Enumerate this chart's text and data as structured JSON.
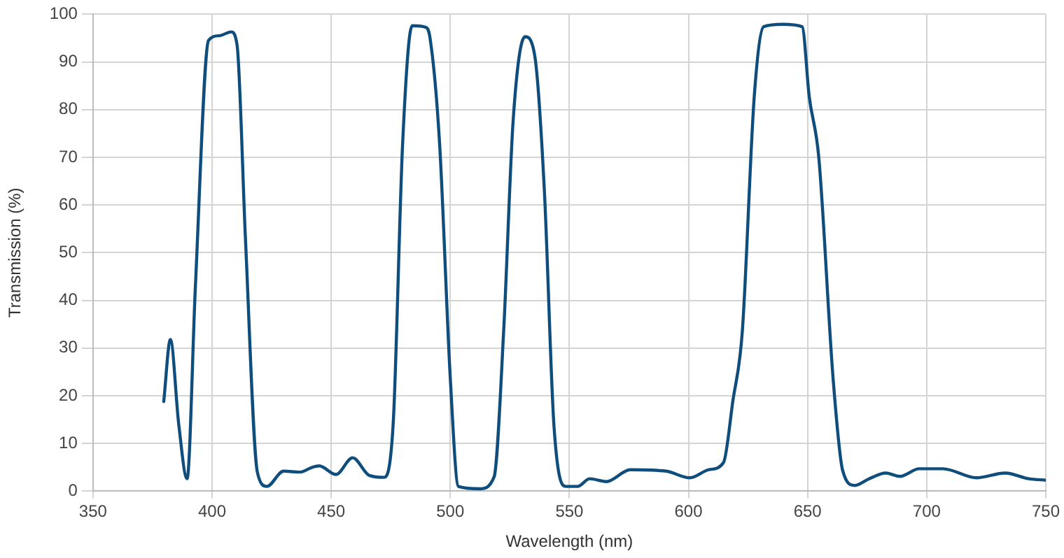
{
  "chart_data": {
    "type": "line",
    "xlabel": "Wavelength (nm)",
    "ylabel": "Transmission (%)",
    "xlim": [
      350,
      750
    ],
    "xticks": [
      350,
      400,
      450,
      500,
      550,
      600,
      650,
      700,
      750
    ],
    "ylim": [
      0,
      100
    ],
    "yticks": [
      0,
      10,
      20,
      30,
      40,
      50,
      60,
      70,
      80,
      90,
      100
    ],
    "grid": true,
    "legend": false,
    "marker": "none",
    "line_style": "solid",
    "series": [
      {
        "color": "#0f4d7d",
        "x": [
          379.7,
          382.5,
          386,
          389.5,
          393,
          398.5,
          403,
          408,
          410.5,
          414,
          419,
          423,
          430,
          437,
          442,
          445,
          452,
          459,
          466,
          472,
          476,
          480,
          484,
          489.5,
          491.5,
          495.5,
          500,
          503.4,
          512.4,
          518.4,
          522.4,
          526.4,
          531.4,
          535.4,
          539.5,
          543.5,
          548.5,
          553.5,
          558.5,
          565.5,
          575.6,
          590.6,
          600.6,
          608.6,
          614.7,
          618.6,
          622.6,
          627.6,
          631.6,
          639.6,
          647.7,
          650.7,
          654.7,
          660.7,
          664.7,
          669.8,
          675.8,
          682.8,
          688.8,
          696.8,
          706.8,
          720.9,
          732.9,
          742.9,
          750
        ],
        "values": [
          18.8,
          31.8,
          14,
          2.6,
          43,
          94.5,
          95.5,
          96.3,
          93.5,
          53,
          4,
          1,
          4.2,
          4,
          5,
          5.3,
          3.5,
          7,
          3.3,
          2.9,
          13.9,
          73,
          97.6,
          97.3,
          95,
          73,
          23.7,
          1,
          0.5,
          3,
          33.5,
          77.8,
          95.3,
          91.5,
          63,
          13.9,
          1,
          1,
          2.6,
          2,
          4.5,
          4.2,
          2.8,
          4.5,
          6,
          18.8,
          33.5,
          82.7,
          97.4,
          97.9,
          97.4,
          82.7,
          70,
          23.7,
          4.4,
          1.2,
          2.6,
          3.8,
          3.1,
          4.7,
          4.7,
          2.8,
          3.8,
          2.6,
          2.3
        ]
      }
    ]
  }
}
